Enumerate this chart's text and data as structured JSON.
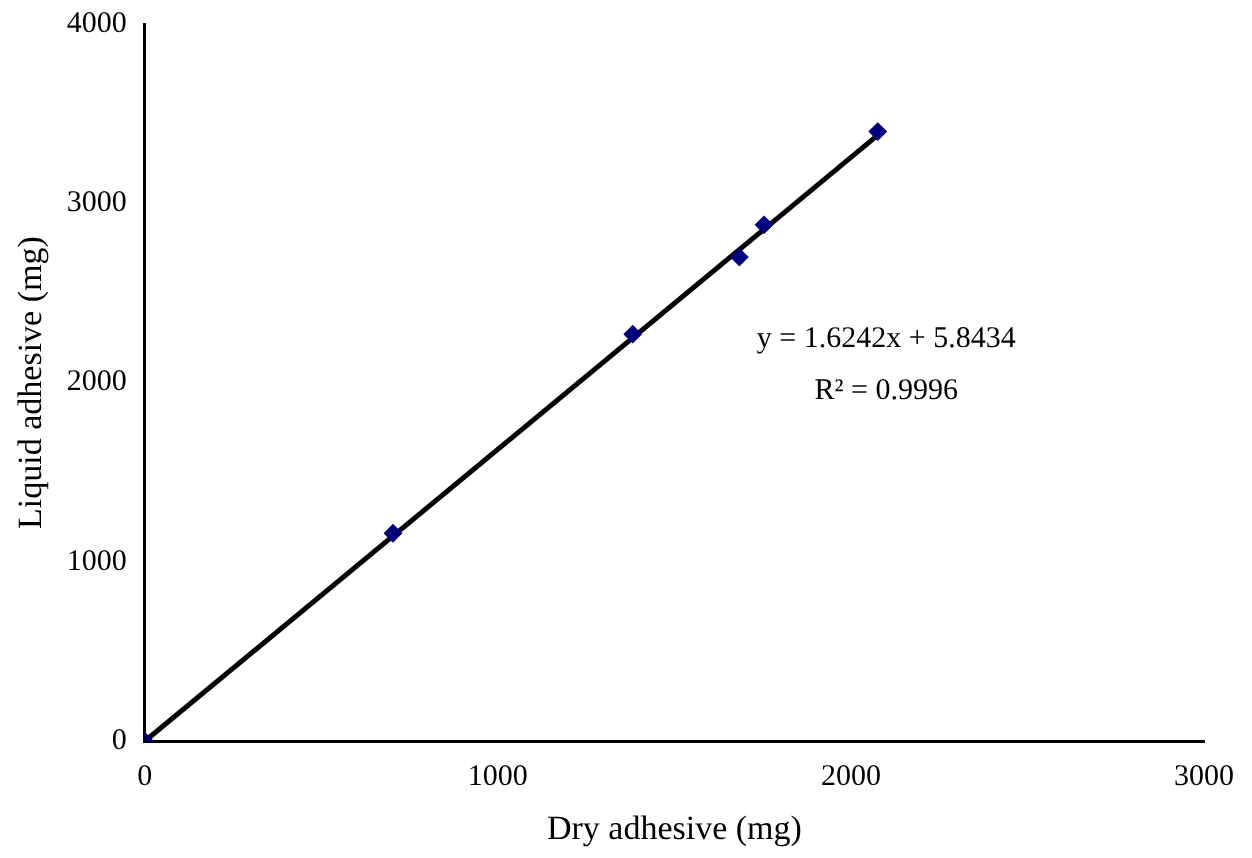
{
  "chart_data": {
    "type": "scatter",
    "xlabel": "Dry adhesive (mg)",
    "ylabel": "Liquid adhesive (mg)",
    "x": [
      0,
      703,
      1382,
      1684,
      1754,
      2076
    ],
    "series": [
      {
        "type": "scatter",
        "color": "#00007f",
        "values": [
          0,
          1160,
          2270,
          2700,
          2880,
          3400
        ]
      },
      {
        "type": "line",
        "color": "#000000",
        "marker": "none",
        "x": [
          0,
          2076
        ],
        "values": [
          0,
          3380
        ]
      }
    ],
    "xlim": [
      0,
      3000
    ],
    "xticks": [
      0,
      1000,
      2000,
      3000
    ],
    "ylim": [
      0,
      4000
    ],
    "yticks": [
      0,
      1000,
      2000,
      3000,
      4000
    ],
    "grid": false,
    "legend": false,
    "marker": "diamond",
    "annotations": [
      "y = 1.6242x + 5.8434",
      "R² = 0.9996"
    ]
  }
}
